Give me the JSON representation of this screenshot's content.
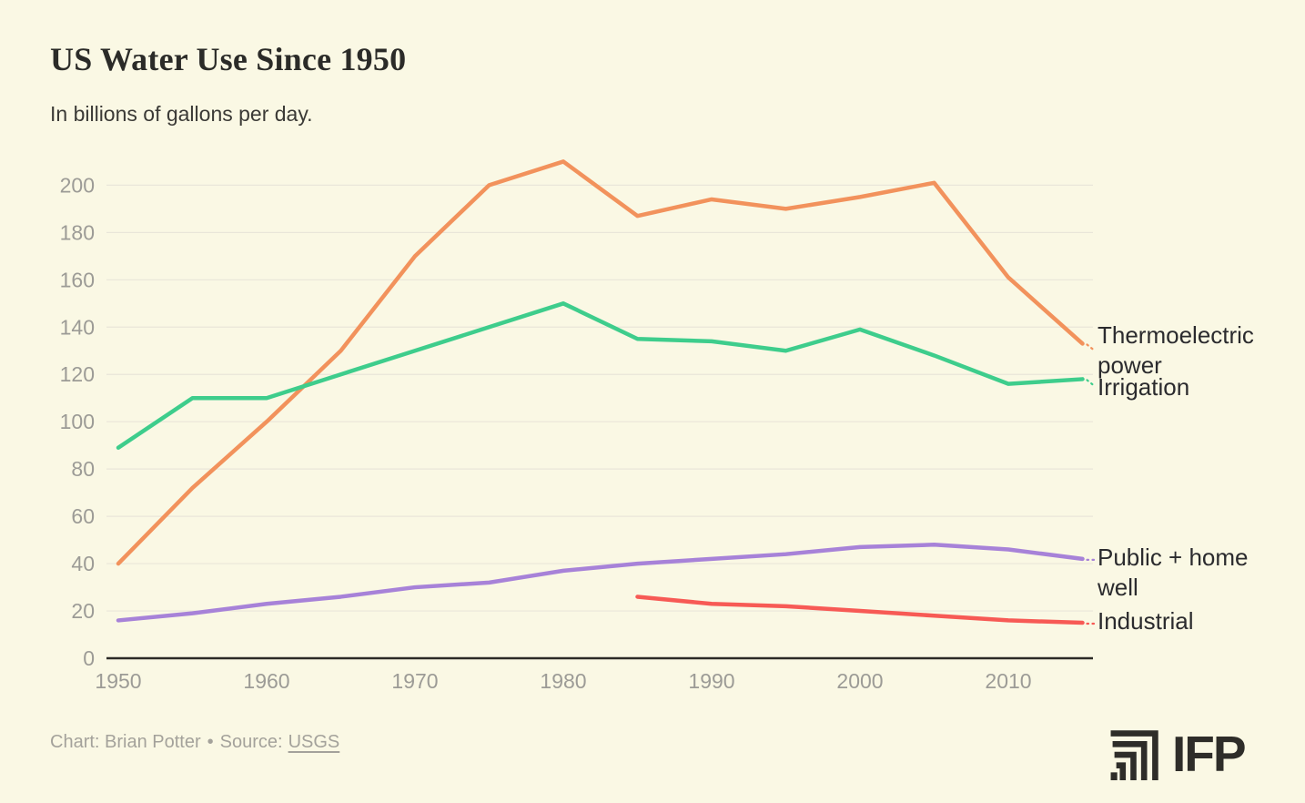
{
  "chart_data": {
    "type": "line",
    "title": "US Water Use Since 1950",
    "subtitle": "In billions of gallons per day.",
    "xlabel": "",
    "ylabel": "",
    "x": [
      1950,
      1955,
      1960,
      1965,
      1970,
      1975,
      1980,
      1985,
      1990,
      1995,
      2000,
      2005,
      2010,
      2015
    ],
    "series": [
      {
        "name": "Thermoelectric power",
        "color": "#F2925C",
        "values": [
          40,
          72,
          100,
          130,
          170,
          200,
          210,
          187,
          194,
          190,
          195,
          201,
          161,
          133
        ]
      },
      {
        "name": "Irrigation",
        "color": "#3ECD8C",
        "values": [
          89,
          110,
          110,
          120,
          130,
          140,
          150,
          135,
          134,
          130,
          139,
          128,
          116,
          118
        ]
      },
      {
        "name": "Public + home well",
        "color": "#A782D8",
        "values": [
          16,
          19,
          23,
          26,
          30,
          32,
          37,
          40,
          42,
          44,
          47,
          48,
          46,
          42
        ]
      },
      {
        "name": "Industrial",
        "color": "#F75A55",
        "values": [
          null,
          null,
          null,
          null,
          null,
          null,
          null,
          26,
          23,
          22,
          20,
          18,
          16,
          15
        ]
      }
    ],
    "ylim": [
      0,
      200
    ],
    "yticks": [
      0,
      20,
      40,
      60,
      80,
      100,
      120,
      140,
      160,
      180,
      200
    ],
    "xticks": [
      1950,
      1960,
      1970,
      1980,
      1990,
      2000,
      2010
    ],
    "grid": "horizontal",
    "legend_position": "right-edge-labels"
  },
  "colors": {
    "background": "#FAF8E4",
    "gridline": "#E9E6D9",
    "axis_line": "#2B2A26",
    "tick_text": "#9C9B96",
    "label_text": "#2B2B2E",
    "footer_text": "#A4A29B",
    "logo": "#2E2D29"
  },
  "footer": {
    "chart_credit": "Chart: Brian Potter",
    "separator": "•",
    "source_label": "Source:",
    "source_link": "USGS"
  },
  "branding": {
    "logo_text": "IFP"
  }
}
